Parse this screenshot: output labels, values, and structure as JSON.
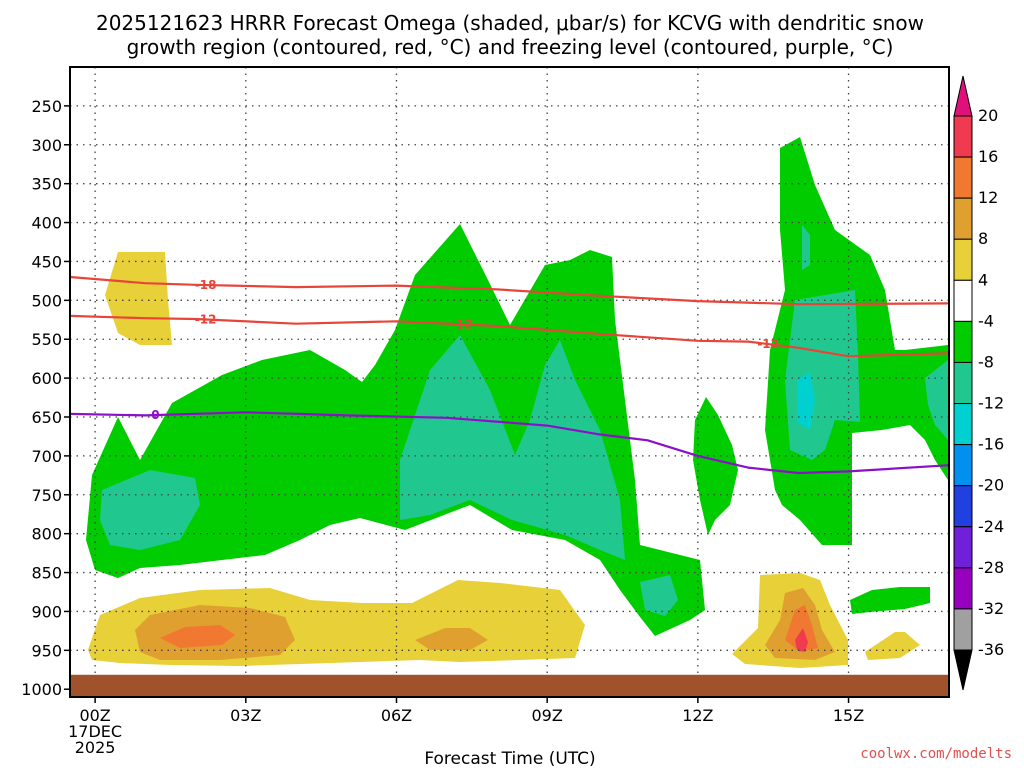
{
  "chart_data": {
    "type": "heatmap",
    "title_line1": "2025121623 HRRR Forecast Omega (shaded, μbar/s) for KCVG with dendritic snow",
    "title_line2": "growth region (contoured, red, °C) and freezing level (contoured, purple, °C)",
    "xlabel": "Forecast Time (UTC)",
    "credit": "coolwx.com/modelts",
    "x_ticks": [
      {
        "hour": 0,
        "label": "00Z",
        "date": "17DEC",
        "year": "2025"
      },
      {
        "hour": 3,
        "label": "03Z"
      },
      {
        "hour": 6,
        "label": "06Z"
      },
      {
        "hour": 9,
        "label": "09Z"
      },
      {
        "hour": 12,
        "label": "12Z"
      },
      {
        "hour": 15,
        "label": "15Z"
      }
    ],
    "x_range_hours": [
      -0.5,
      17
    ],
    "y_ticks": [
      250,
      300,
      350,
      400,
      450,
      500,
      550,
      600,
      650,
      700,
      750,
      800,
      850,
      900,
      950,
      1000
    ],
    "y_range_mb": [
      200,
      1010
    ],
    "colorbar": {
      "levels": [
        20,
        16,
        12,
        8,
        4,
        -4,
        -8,
        -12,
        -16,
        -20,
        -24,
        -28,
        -32,
        -36
      ],
      "colors": [
        "#f03a50",
        "#f07830",
        "#e0a030",
        "#e8d038",
        "#ffffff",
        "#00cc00",
        "#20c890",
        "#00d0d0",
        "#0090f0",
        "#2040e0",
        "#7020d8",
        "#9800c0",
        "#a0a0a0"
      ],
      "top_color": "#e0107a",
      "bottom_color": "#000000"
    },
    "contours": {
      "dgz_minus18": {
        "label": "-18",
        "color": "#e8443a",
        "points": [
          [
            -0.5,
            470
          ],
          [
            1,
            478
          ],
          [
            2,
            480
          ],
          [
            4,
            483
          ],
          [
            6,
            481
          ],
          [
            8,
            486
          ],
          [
            10,
            494
          ],
          [
            12,
            501
          ],
          [
            14,
            505
          ],
          [
            17,
            504
          ]
        ]
      },
      "dgz_minus12": {
        "label": "-12",
        "color": "#e8443a",
        "points": [
          [
            -0.5,
            520
          ],
          [
            1,
            523
          ],
          [
            2,
            524
          ],
          [
            4,
            530
          ],
          [
            6,
            527
          ],
          [
            8,
            533
          ],
          [
            10,
            543
          ],
          [
            12,
            552
          ],
          [
            13,
            553
          ],
          [
            14,
            561
          ],
          [
            15,
            572
          ],
          [
            17,
            568
          ]
        ]
      },
      "freezing_0": {
        "label": "0",
        "color": "#8c10c8",
        "points": [
          [
            -0.5,
            646
          ],
          [
            1,
            648
          ],
          [
            3,
            644
          ],
          [
            5,
            648
          ],
          [
            7,
            651
          ],
          [
            9,
            661
          ],
          [
            10,
            672
          ],
          [
            11,
            680
          ],
          [
            12,
            700
          ],
          [
            13,
            715
          ],
          [
            14,
            722
          ],
          [
            15,
            720
          ],
          [
            17,
            712
          ]
        ]
      }
    },
    "ground_level_mb": 975,
    "ground_color": "#a0522d"
  }
}
